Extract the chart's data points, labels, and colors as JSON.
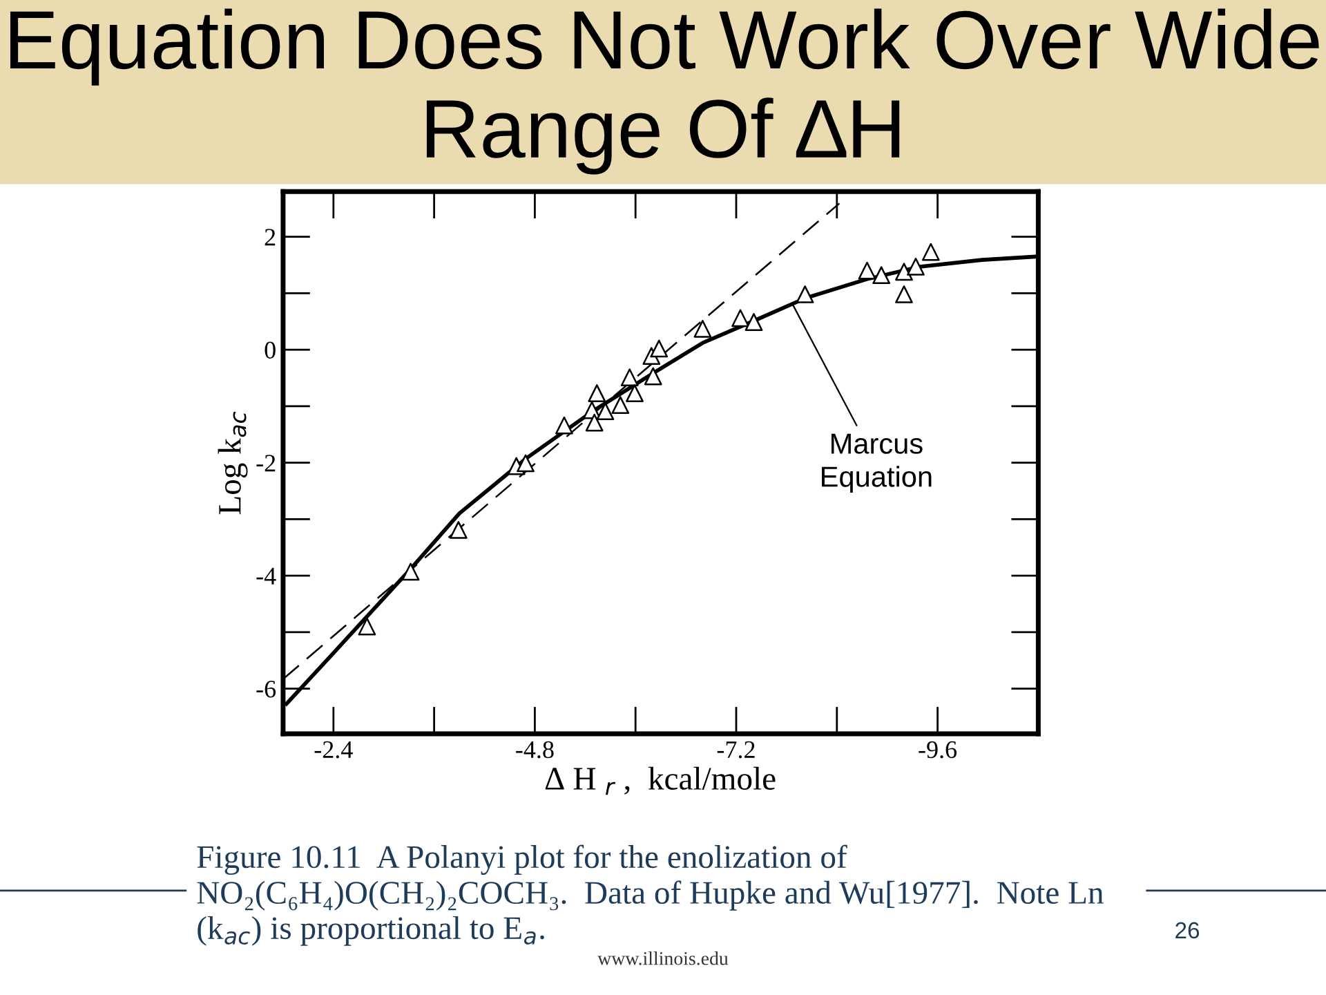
{
  "chart_data": {
    "type": "scatter",
    "title": "Equation Does Not Work Over Wide Range Of ∆H",
    "xlabel": "∆ H $_{r}$ ,  kcal/mole",
    "ylabel": "Log k$_{ac}$",
    "series": [
      {
        "color": "#000000",
        "marker": "triangle",
        "x": [
          -2.8,
          -3.32,
          -3.89,
          -4.58,
          -4.69,
          -5.15,
          -5.54,
          -5.48,
          -5.51,
          -5.64,
          -5.82,
          -5.93,
          -5.99,
          -6.21,
          -6.19,
          -6.28,
          -6.8,
          -7.25,
          -7.41,
          -8.02,
          -8.76,
          -8.93,
          -9.2,
          -9.2,
          -9.34,
          -9.52
        ],
        "values": [
          -4.9,
          -3.93,
          -3.19,
          -2.06,
          -2.01,
          -1.34,
          -0.77,
          -1.07,
          -1.29,
          -1.09,
          -0.98,
          -0.49,
          -0.77,
          -0.47,
          -0.11,
          0.02,
          0.37,
          0.56,
          0.49,
          0.98,
          1.4,
          1.32,
          1.38,
          0.98,
          1.47,
          1.73
        ]
      },
      {
        "type": "line",
        "color": "#000000",
        "line_style": "solid",
        "x": [
          -1.84,
          -2.4,
          -3.32,
          -3.9,
          -4.71,
          -5.51,
          -6.25,
          -6.8,
          -7.41,
          -8.02,
          -8.76,
          -9.39,
          -10.13,
          -10.79
        ],
        "values": [
          -6.27,
          -5.37,
          -3.88,
          -2.9,
          -1.91,
          -1.07,
          -0.38,
          0.12,
          0.51,
          0.91,
          1.25,
          1.47,
          1.59,
          1.65
        ]
      },
      {
        "type": "line",
        "color": "#000000",
        "line_style": "dashed",
        "x": [
          -1.8,
          -8.43
        ],
        "values": [
          -5.83,
          2.59
        ]
      }
    ],
    "xlim": [
      -1.8,
      -10.8
    ],
    "xticks": [
      {
        "value": -2.4,
        "label": "-2.4"
      },
      {
        "value": -4.8,
        "label": "-4.8"
      },
      {
        "value": -7.2,
        "label": "-7.2"
      },
      {
        "value": -9.6,
        "label": "-9.6"
      }
    ],
    "ylim": [
      -6.8,
      2.8
    ],
    "yticks": [
      -6,
      -4,
      -2,
      0,
      2
    ],
    "grid": false,
    "legend": false,
    "annotations": [
      {
        "text": "Marcus\nEquation",
        "x": -7.87,
        "y": 0.81
      },
      "Figure 10.11  A Polanyi plot for the enolization of\nNO₂(C₆H₄)O(CH₂)₂COCH₃.  Data of Hupke and Wu[1977].  Note Ln\n(k$_{ac}$) is proportional to E$_{a}$.",
      "26",
      "www.illinois.edu"
    ]
  }
}
